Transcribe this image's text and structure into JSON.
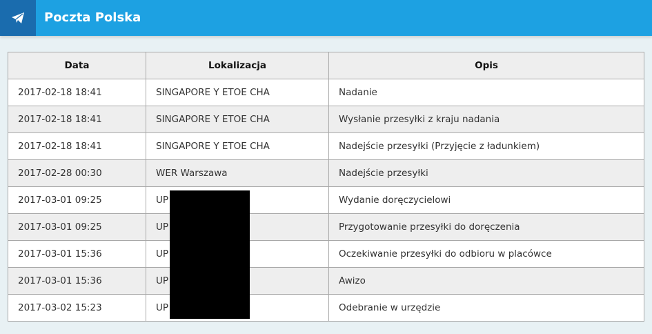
{
  "header": {
    "title": "Poczta Polska",
    "icon": "paper-plane-icon",
    "color": "#1da1e2",
    "icon_bg": "#1a6cae"
  },
  "table": {
    "columns": [
      "Data",
      "Lokalizacja",
      "Opis"
    ],
    "rows": [
      [
        "2017-02-18 18:41",
        "SINGAPORE Y ETOE CHA",
        "Nadanie"
      ],
      [
        "2017-02-18 18:41",
        "SINGAPORE Y ETOE CHA",
        "Wysłanie przesyłki z kraju nadania"
      ],
      [
        "2017-02-18 18:41",
        "SINGAPORE Y ETOE CHA",
        "Nadejście przesyłki (Przyjęcie z ładunkiem)"
      ],
      [
        "2017-02-28 00:30",
        "WER Warszawa",
        "Nadejście przesyłki"
      ],
      [
        "2017-03-01 09:25",
        "UP",
        "Wydanie doręczycielowi"
      ],
      [
        "2017-03-01 09:25",
        "UP",
        "Przygotowanie przesyłki do doręczenia"
      ],
      [
        "2017-03-01 15:36",
        "UP",
        "Oczekiwanie przesyłki do odbioru w placówce"
      ],
      [
        "2017-03-01 15:36",
        "UP",
        "Awizo"
      ],
      [
        "2017-03-02 15:23",
        "UP",
        "Odebranie w urzędzie"
      ]
    ]
  }
}
